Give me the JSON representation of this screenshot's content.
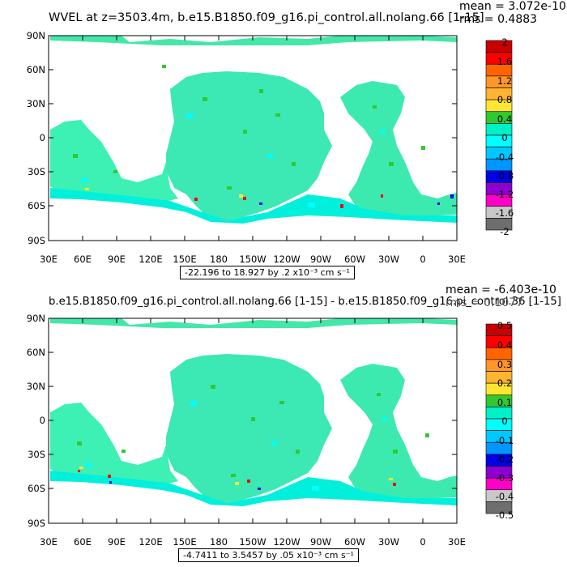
{
  "panels": [
    {
      "title": "WVEL at z=3503.4m, b.e15.B1850.f09_g16.pi_control.all.nolang.66 [1-15]",
      "stats": {
        "mean": "mean = 3.072e-10",
        "rms": "rms = 0.4883"
      },
      "colorbar": {
        "labels": [
          "2",
          "1.6",
          "1.2",
          "0.8",
          "0.4",
          "0",
          "-0.4",
          "-0.8",
          "-1.2",
          "-1.6",
          "-2"
        ]
      },
      "range_text": "-22.196 to 18.927 by .2 x10⁻³ cm s⁻¹"
    },
    {
      "title": "b.e15.B1850.f09_g16.pi_control.all.nolang.66 [1-15] - b.e15.B1850.f09_g16.pi_control.36 [1-15]",
      "stats": {
        "mean": "mean = -6.403e-10",
        "rms": "rms = 0.1077"
      },
      "colorbar": {
        "labels": [
          "0.5",
          "0.4",
          "0.3",
          "0.2",
          "0.1",
          "0",
          "-0.1",
          "-0.2",
          "-0.3",
          "-0.4",
          "-0.5"
        ]
      },
      "range_text": "-4.7411 to 3.5457 by .05 x10⁻³ cm s⁻¹"
    }
  ],
  "axes": {
    "lat_labels": [
      "90N",
      "60N",
      "30N",
      "0",
      "30S",
      "60S",
      "90S"
    ],
    "lon_labels": [
      "30E",
      "60E",
      "90E",
      "120E",
      "150E",
      "180",
      "150W",
      "120W",
      "90W",
      "60W",
      "30W",
      "0",
      "30E"
    ]
  },
  "colorbar_colors": [
    "#c80000",
    "#ff0000",
    "#ff6400",
    "#ff9628",
    "#ffb432",
    "#ffe632",
    "#32c832",
    "#00f0c8",
    "#00ffff",
    "#00c8ff",
    "#0096ff",
    "#0000e6",
    "#8c00d2",
    "#ff00c8",
    "#c8c8c8",
    "#6e6e6e"
  ]
}
